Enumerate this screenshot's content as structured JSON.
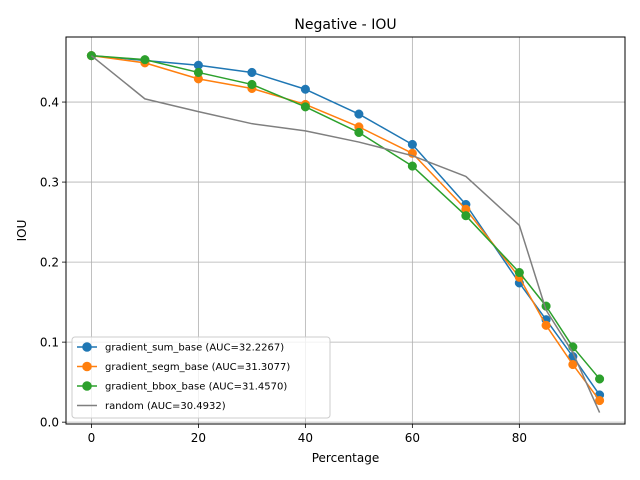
{
  "chart_data": {
    "type": "line",
    "title": "Negative - IOU",
    "xlabel": "Percentage",
    "ylabel": "IOU",
    "xlim": [
      -4.75,
      99.75
    ],
    "ylim": [
      -0.0023,
      0.4813
    ],
    "xticks": [
      0,
      20,
      40,
      60,
      80
    ],
    "yticks": [
      0.0,
      0.1,
      0.2,
      0.3,
      0.4
    ],
    "xtick_labels": [
      "0",
      "20",
      "40",
      "60",
      "80"
    ],
    "ytick_labels": [
      "0.0",
      "0.1",
      "0.2",
      "0.3",
      "0.4"
    ],
    "grid": true,
    "legend_position": "lower-left",
    "x": [
      0,
      10,
      20,
      30,
      40,
      50,
      60,
      70,
      80,
      85,
      90,
      95
    ],
    "series": [
      {
        "name": "gradient_sum_base (AUC=32.2267)",
        "color": "#1f77b4",
        "marker": "circle",
        "values": [
          0.458,
          0.452,
          0.446,
          0.437,
          0.416,
          0.385,
          0.347,
          0.272,
          0.174,
          0.128,
          0.082,
          0.034
        ]
      },
      {
        "name": "gradient_segm_base (AUC=31.3077)",
        "color": "#ff7f0e",
        "marker": "circle",
        "values": [
          0.458,
          0.449,
          0.429,
          0.417,
          0.397,
          0.369,
          0.336,
          0.266,
          0.181,
          0.121,
          0.072,
          0.027
        ]
      },
      {
        "name": "gradient_bbox_base (AUC=31.4570)",
        "color": "#2ca02c",
        "marker": "circle",
        "values": [
          0.458,
          0.453,
          0.437,
          0.422,
          0.394,
          0.362,
          0.32,
          0.258,
          0.187,
          0.145,
          0.094,
          0.054
        ]
      },
      {
        "name": "random (AUC=30.4932)",
        "color": "#7f7f7f",
        "marker": "none",
        "values": [
          0.458,
          0.404,
          0.388,
          0.373,
          0.364,
          0.35,
          0.333,
          0.307,
          0.246,
          0.14,
          0.087,
          0.012
        ]
      }
    ]
  }
}
